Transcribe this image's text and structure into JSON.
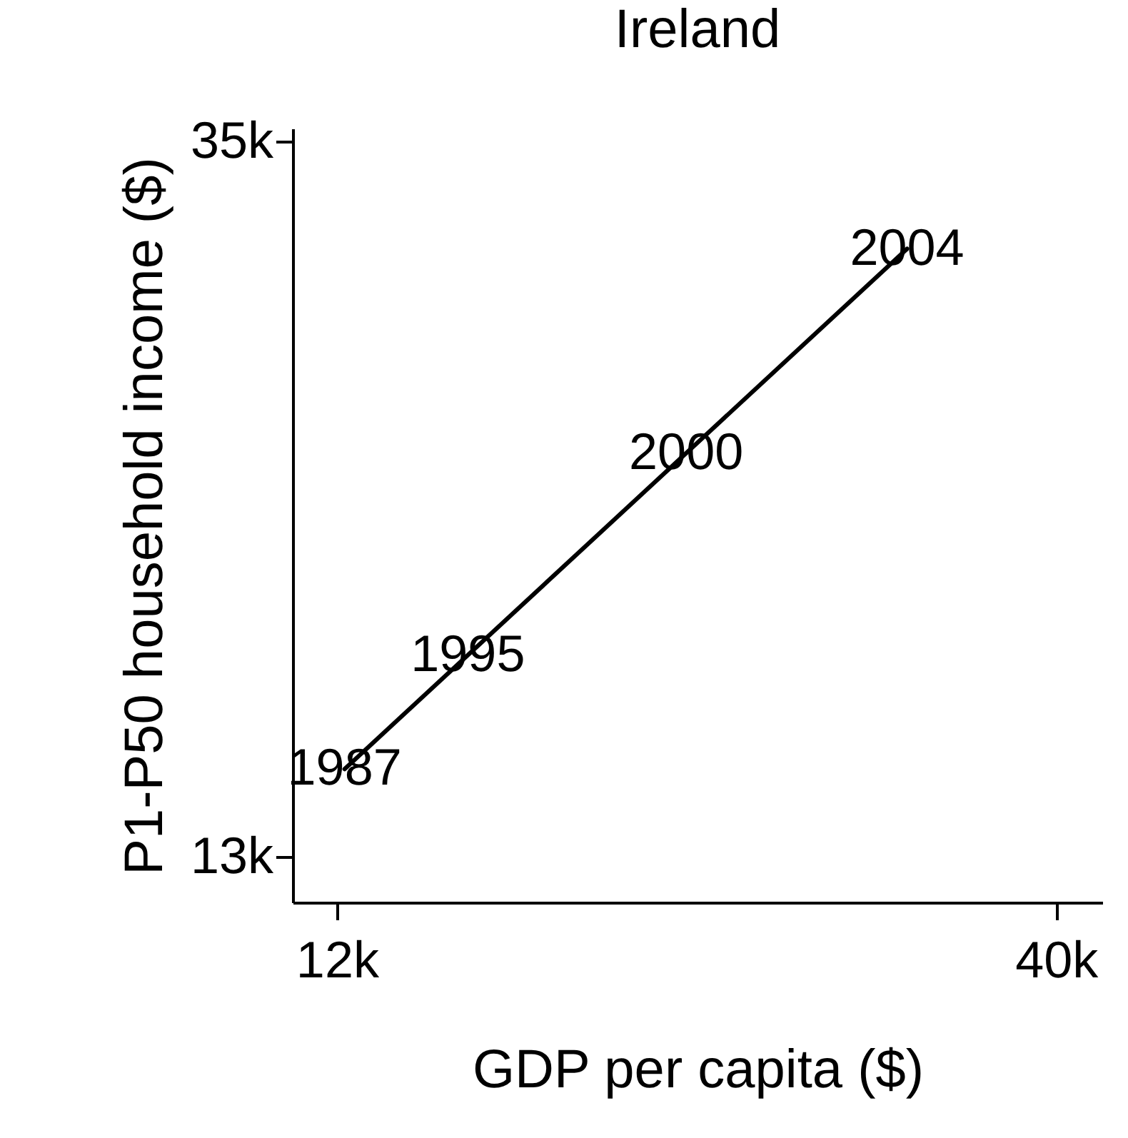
{
  "chart_data": {
    "type": "line",
    "title": "Ireland",
    "xlabel": "GDP per capita ($)",
    "ylabel": "P1-P50 household income ($)",
    "x": [
      12300,
      34200
    ],
    "series": [
      {
        "color": "#000000",
        "values": [
          15700,
          31700
        ]
      }
    ],
    "xlim": [
      10280,
      41800
    ],
    "xticks": [
      {
        "value": 12000,
        "label": "12k"
      },
      {
        "value": 40000,
        "label": "40k"
      }
    ],
    "ylim": [
      11600,
      35400
    ],
    "yticks": [
      {
        "value": 13000,
        "label": "13k"
      },
      {
        "value": 35000,
        "label": "35k"
      }
    ],
    "annotations": [
      {
        "text": "1987",
        "x": 12300,
        "y": 15700
      },
      {
        "text": "1995",
        "x": 17100,
        "y": 19200
      },
      {
        "text": "2000",
        "x": 25600,
        "y": 25400
      },
      {
        "text": "2004",
        "x": 34200,
        "y": 31700
      }
    ],
    "grid": false,
    "marker": "none",
    "line_style": "solid"
  }
}
